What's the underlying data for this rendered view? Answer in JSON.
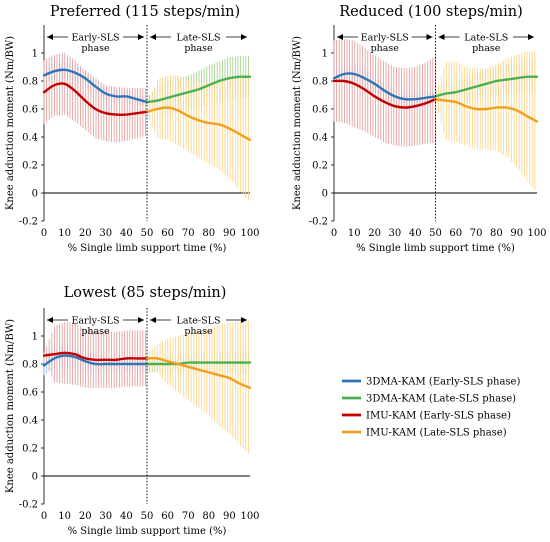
{
  "legend": [
    {
      "label": "3DMA-KAM (Early-SLS phase)",
      "color": "#2e75b6"
    },
    {
      "label": "3DMA-KAM (Late-SLS phase)",
      "color": "#4caf50"
    },
    {
      "label": "IMU-KAM (Early-SLS phase)",
      "color": "#c00000"
    },
    {
      "label": "IMU-KAM (Late-SLS phase)",
      "color": "#f0a020"
    }
  ],
  "chart_data": [
    {
      "type": "line",
      "title": "Preferred (115 steps/min)",
      "xlabel": "% Single limb support time (%)",
      "ylabel": "Knee adduction moment (Nm/BW)",
      "xlim": [
        0,
        100
      ],
      "ylim": [
        -0.2,
        1.2
      ],
      "xticks": [
        "0",
        "10",
        "20",
        "30",
        "40",
        "50",
        "60",
        "70",
        "80",
        "90",
        "100"
      ],
      "yticks": [
        "-0.2",
        "0",
        "0.2",
        "0.4",
        "0.6",
        "0.8",
        "1"
      ],
      "phase_divider_x": 50,
      "phase_labels": {
        "early": [
          "Early-SLS",
          "phase"
        ],
        "late": [
          "Late-SLS",
          "phase"
        ]
      },
      "series": [
        {
          "name": "3DMA-KAM (Early-SLS phase)",
          "color": "#2e75b6",
          "band_color": "#9dc3e6",
          "x": [
            0,
            5,
            10,
            15,
            20,
            25,
            30,
            35,
            40,
            45,
            50
          ],
          "mean": [
            0.84,
            0.87,
            0.88,
            0.86,
            0.82,
            0.76,
            0.71,
            0.69,
            0.69,
            0.67,
            0.65
          ],
          "sd": [
            0.06,
            0.06,
            0.06,
            0.06,
            0.06,
            0.06,
            0.05,
            0.05,
            0.05,
            0.04,
            0.03
          ]
        },
        {
          "name": "3DMA-KAM (Late-SLS phase)",
          "color": "#4caf50",
          "band_color": "#a9d18e",
          "x": [
            50,
            55,
            60,
            65,
            70,
            75,
            80,
            85,
            90,
            95,
            100
          ],
          "mean": [
            0.65,
            0.66,
            0.68,
            0.7,
            0.72,
            0.74,
            0.77,
            0.8,
            0.82,
            0.83,
            0.83
          ],
          "sd": [
            0.03,
            0.1,
            0.12,
            0.12,
            0.12,
            0.13,
            0.14,
            0.14,
            0.15,
            0.15,
            0.15
          ]
        },
        {
          "name": "IMU-KAM (Early-SLS phase)",
          "color": "#c00000",
          "band_color": "#e6a0a0",
          "x": [
            0,
            5,
            10,
            15,
            20,
            25,
            30,
            35,
            40,
            45,
            50
          ],
          "mean": [
            0.72,
            0.77,
            0.78,
            0.73,
            0.66,
            0.6,
            0.57,
            0.56,
            0.56,
            0.57,
            0.58
          ],
          "sd": [
            0.23,
            0.22,
            0.22,
            0.22,
            0.21,
            0.21,
            0.2,
            0.2,
            0.19,
            0.18,
            0.17
          ]
        },
        {
          "name": "IMU-KAM (Late-SLS phase)",
          "color": "#f0a020",
          "band_color": "#ffd58a",
          "x": [
            50,
            55,
            60,
            65,
            70,
            75,
            80,
            85,
            90,
            95,
            100
          ],
          "mean": [
            0.58,
            0.6,
            0.61,
            0.59,
            0.55,
            0.52,
            0.5,
            0.49,
            0.46,
            0.42,
            0.38
          ],
          "sd": [
            0.02,
            0.21,
            0.23,
            0.25,
            0.25,
            0.27,
            0.29,
            0.32,
            0.36,
            0.4,
            0.45
          ]
        }
      ]
    },
    {
      "type": "line",
      "title": "Reduced (100 steps/min)",
      "xlabel": "% Single limb support time (%)",
      "ylabel": "Knee adduction moment (Nm/BW)",
      "xlim": [
        0,
        100
      ],
      "ylim": [
        -0.2,
        1.2
      ],
      "xticks": [
        "0",
        "10",
        "20",
        "30",
        "40",
        "50",
        "60",
        "70",
        "80",
        "90",
        "100"
      ],
      "yticks": [
        "-0.2",
        "0",
        "0.2",
        "0.4",
        "0.6",
        "0.8",
        "1"
      ],
      "phase_divider_x": 50,
      "phase_labels": {
        "early": [
          "Early-SLS",
          "phase"
        ],
        "late": [
          "Late-SLS",
          "phase"
        ]
      },
      "series": [
        {
          "name": "3DMA-KAM (Early-SLS phase)",
          "color": "#2e75b6",
          "band_color": "#9dc3e6",
          "x": [
            0,
            5,
            10,
            15,
            20,
            25,
            30,
            35,
            40,
            45,
            50
          ],
          "mean": [
            0.82,
            0.85,
            0.85,
            0.82,
            0.78,
            0.73,
            0.69,
            0.67,
            0.67,
            0.68,
            0.69
          ],
          "sd": [
            0.06,
            0.06,
            0.06,
            0.06,
            0.06,
            0.05,
            0.05,
            0.05,
            0.05,
            0.04,
            0.04
          ]
        },
        {
          "name": "3DMA-KAM (Late-SLS phase)",
          "color": "#4caf50",
          "band_color": "#a9d18e",
          "x": [
            50,
            55,
            60,
            65,
            70,
            75,
            80,
            85,
            90,
            95,
            100
          ],
          "mean": [
            0.69,
            0.71,
            0.72,
            0.74,
            0.76,
            0.78,
            0.8,
            0.81,
            0.82,
            0.83,
            0.83
          ],
          "sd": [
            0.04,
            0.06,
            0.07,
            0.08,
            0.09,
            0.1,
            0.1,
            0.11,
            0.11,
            0.11,
            0.11
          ]
        },
        {
          "name": "IMU-KAM (Early-SLS phase)",
          "color": "#c00000",
          "band_color": "#e6a0a0",
          "x": [
            0,
            5,
            10,
            15,
            20,
            25,
            30,
            35,
            40,
            45,
            50
          ],
          "mean": [
            0.8,
            0.8,
            0.78,
            0.74,
            0.69,
            0.65,
            0.62,
            0.61,
            0.62,
            0.64,
            0.67
          ],
          "sd": [
            0.29,
            0.3,
            0.31,
            0.3,
            0.29,
            0.29,
            0.28,
            0.28,
            0.28,
            0.29,
            0.31
          ]
        },
        {
          "name": "IMU-KAM (Late-SLS phase)",
          "color": "#f0a020",
          "band_color": "#ffd58a",
          "x": [
            50,
            55,
            60,
            65,
            70,
            75,
            80,
            85,
            90,
            95,
            100
          ],
          "mean": [
            0.67,
            0.66,
            0.65,
            0.62,
            0.6,
            0.6,
            0.61,
            0.61,
            0.59,
            0.55,
            0.51
          ],
          "sd": [
            0.02,
            0.28,
            0.29,
            0.28,
            0.29,
            0.29,
            0.31,
            0.35,
            0.4,
            0.46,
            0.51
          ]
        }
      ]
    },
    {
      "type": "line",
      "title": "Lowest (85 steps/min)",
      "xlabel": "% Single limb support time (%)",
      "ylabel": "Knee adduction moment (Nm/BW)",
      "xlim": [
        0,
        100
      ],
      "ylim": [
        -0.2,
        1.2
      ],
      "xticks": [
        "0",
        "10",
        "20",
        "30",
        "40",
        "50",
        "60",
        "70",
        "80",
        "90",
        "100"
      ],
      "yticks": [
        "-0.2",
        "0",
        "0.2",
        "0.4",
        "0.6",
        "0.8",
        "1"
      ],
      "phase_divider_x": 50,
      "phase_labels": {
        "early": [
          "Early-SLS",
          "phase"
        ],
        "late": [
          "Late-SLS",
          "phase"
        ]
      },
      "series": [
        {
          "name": "3DMA-KAM (Early-SLS phase)",
          "color": "#2e75b6",
          "band_color": "#9dc3e6",
          "x": [
            0,
            5,
            10,
            15,
            20,
            25,
            30,
            35,
            40,
            45,
            50
          ],
          "mean": [
            0.79,
            0.84,
            0.86,
            0.85,
            0.82,
            0.8,
            0.8,
            0.8,
            0.8,
            0.8,
            0.8
          ],
          "sd": [
            0.07,
            0.07,
            0.08,
            0.08,
            0.07,
            0.06,
            0.06,
            0.06,
            0.06,
            0.06,
            0.06
          ]
        },
        {
          "name": "3DMA-KAM (Late-SLS phase)",
          "color": "#4caf50",
          "band_color": "#a9d18e",
          "x": [
            50,
            55,
            60,
            65,
            70,
            75,
            80,
            85,
            90,
            95,
            100
          ],
          "mean": [
            0.8,
            0.8,
            0.8,
            0.8,
            0.81,
            0.81,
            0.81,
            0.81,
            0.81,
            0.81,
            0.81
          ],
          "sd": [
            0.06,
            0.06,
            0.06,
            0.06,
            0.06,
            0.07,
            0.07,
            0.07,
            0.07,
            0.08,
            0.08
          ]
        },
        {
          "name": "IMU-KAM (Early-SLS phase)",
          "color": "#c00000",
          "band_color": "#e6a0a0",
          "x": [
            0,
            5,
            10,
            15,
            20,
            25,
            30,
            35,
            40,
            45,
            50
          ],
          "mean": [
            0.86,
            0.87,
            0.88,
            0.87,
            0.84,
            0.83,
            0.83,
            0.83,
            0.84,
            0.84,
            0.84
          ],
          "sd": [
            0.02,
            0.2,
            0.22,
            0.22,
            0.21,
            0.2,
            0.2,
            0.2,
            0.2,
            0.2,
            0.2
          ]
        },
        {
          "name": "IMU-KAM (Late-SLS phase)",
          "color": "#f0a020",
          "band_color": "#ffd58a",
          "x": [
            50,
            55,
            60,
            65,
            70,
            75,
            80,
            85,
            90,
            95,
            100
          ],
          "mean": [
            0.84,
            0.84,
            0.82,
            0.8,
            0.78,
            0.76,
            0.74,
            0.72,
            0.7,
            0.66,
            0.63
          ],
          "sd": [
            0.04,
            0.1,
            0.16,
            0.2,
            0.24,
            0.27,
            0.31,
            0.36,
            0.4,
            0.44,
            0.48
          ]
        }
      ]
    }
  ]
}
